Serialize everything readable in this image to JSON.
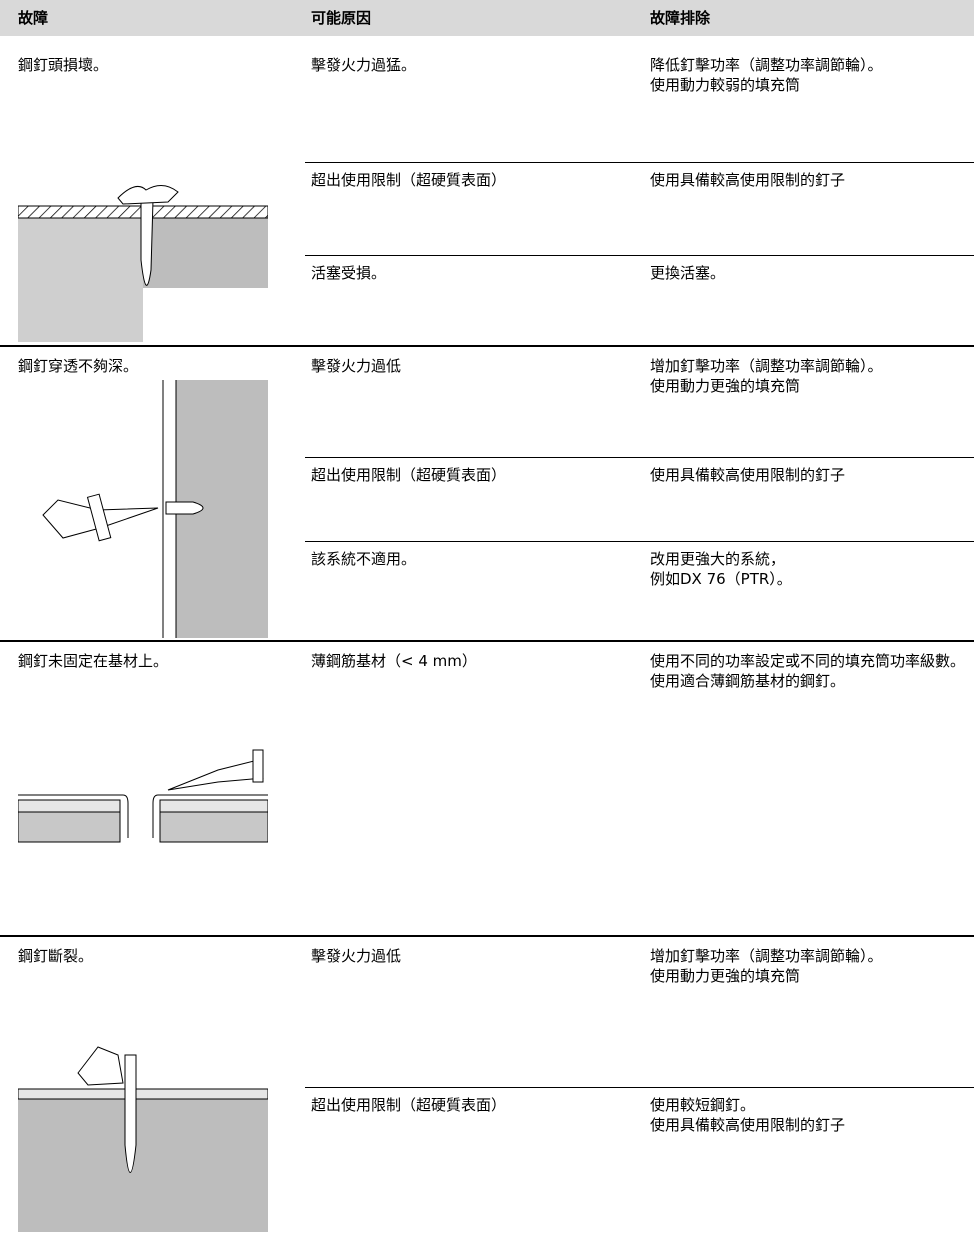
{
  "header": [
    "故障",
    "可能原因",
    "故障排除"
  ],
  "groups": [
    {
      "fault": "鋼釘頭損壞。",
      "causes": [
        {
          "cause": "擊發火力過猛。",
          "remedy": [
            "降低釘擊功率（調整功率調節輪）。",
            "使用動力較弱的填充筒"
          ]
        },
        {
          "cause": "超出使用限制（超硬質表面）",
          "remedy": [
            "使用具備較高使用限制的釘子"
          ]
        },
        {
          "cause": "活塞受損。",
          "remedy": [
            "更換活塞。"
          ]
        }
      ]
    },
    {
      "fault": "鋼釘穿透不夠深。",
      "causes": [
        {
          "cause": "擊發火力過低",
          "remedy": [
            "增加釘擊功率（調整功率調節輪）。",
            "使用動力更強的填充筒"
          ]
        },
        {
          "cause": "超出使用限制（超硬質表面）",
          "remedy": [
            "使用具備較高使用限制的釘子"
          ]
        },
        {
          "cause": "該系統不適用。",
          "remedy": [
            "改用更強大的系統，",
            "例如DX 76（PTR）。"
          ]
        }
      ]
    },
    {
      "fault": "鋼釘未固定在基材上。",
      "causes": [
        {
          "cause": "薄鋼筋基材（< 4 mm）",
          "remedy": [
            "使用不同的功率設定或不同的填充筒功率級數。",
            "使用適合薄鋼筋基材的鋼釘。"
          ]
        }
      ]
    },
    {
      "fault": "鋼釘斷裂。",
      "causes": [
        {
          "cause": "擊發火力過低",
          "remedy": [
            "增加釘擊功率（調整功率調節輪）。",
            "使用動力更強的填充筒"
          ]
        },
        {
          "cause": "超出使用限制（超硬質表面）",
          "remedy": [
            "使用較短鋼釘。",
            "使用具備較高使用限制的釘子"
          ]
        }
      ]
    }
  ]
}
